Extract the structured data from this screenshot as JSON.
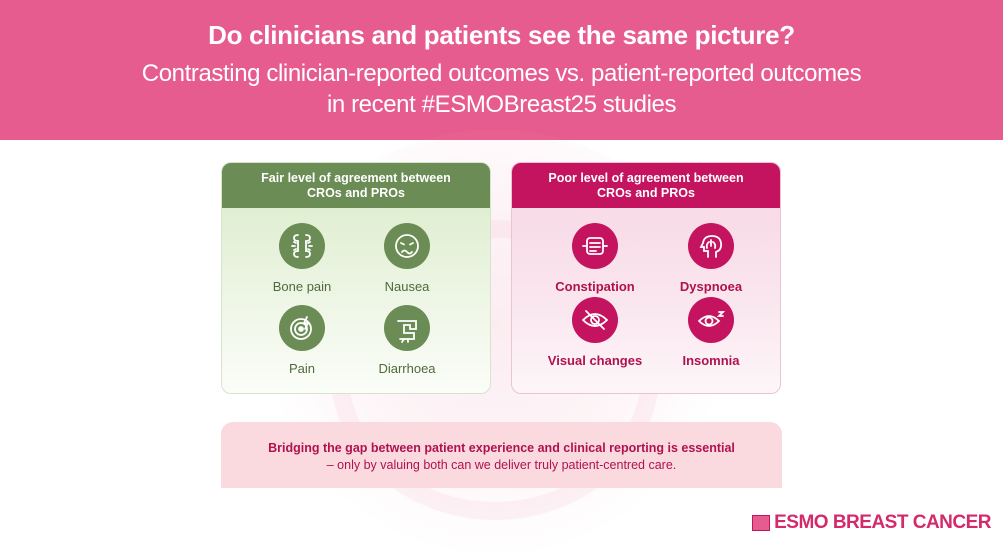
{
  "header": {
    "title": "Do clinicians and patients see the same picture?",
    "subtitle_line1": "Contrasting clinician-reported outcomes vs. patient-reported outcomes",
    "subtitle_line2": "in recent #ESMOBreast25 studies"
  },
  "panels": {
    "fair": {
      "heading_line1": "Fair level of agreement between",
      "heading_line2": "CROs and PROs",
      "items": [
        {
          "label": "Bone pain",
          "icon": "bone-icon"
        },
        {
          "label": "Nausea",
          "icon": "nausea-face-icon"
        },
        {
          "label": "Pain",
          "icon": "pain-target-icon"
        },
        {
          "label": "Diarrhoea",
          "icon": "intestine-icon"
        }
      ]
    },
    "poor": {
      "heading_line1": "Poor level of agreement between",
      "heading_line2": "CROs and PROs",
      "items": [
        {
          "label": "Constipation",
          "icon": "bowel-icon"
        },
        {
          "label": "Dyspnoea",
          "icon": "lungs-head-icon"
        },
        {
          "label": "Visual changes",
          "icon": "eye-slash-icon"
        },
        {
          "label": "Insomnia",
          "icon": "sleepy-eye-icon"
        }
      ]
    }
  },
  "bottom": {
    "line1": "Bridging the gap between patient experience and clinical reporting is essential",
    "line2": "– only by valuing both can we deliver truly patient-centred care."
  },
  "brand": {
    "text": "ESMO BREAST CANCER"
  },
  "colors": {
    "header_pink": "#e75c8e",
    "green": "#6b8c54",
    "magenta": "#c4145f"
  }
}
